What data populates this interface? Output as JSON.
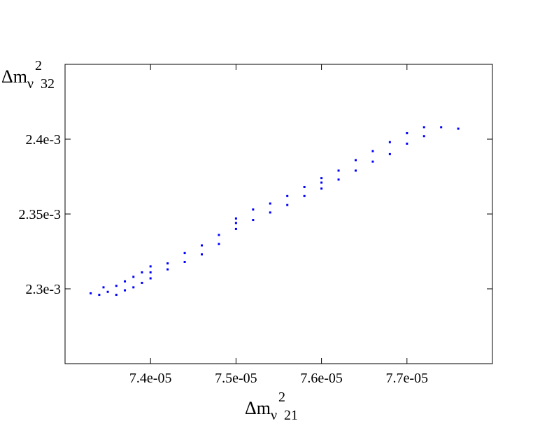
{
  "chart_data": {
    "type": "scatter",
    "xlabel": {
      "base": "Δm",
      "sub": "ν",
      "sup": "2",
      "index": "21"
    },
    "ylabel": {
      "base": "Δm",
      "sub": "ν",
      "sup": "2",
      "index": "32"
    },
    "xlim": [
      7.3e-05,
      7.8e-05
    ],
    "ylim": [
      0.00225,
      0.00245
    ],
    "xticks": [
      {
        "value": 7.4e-05,
        "label": "7.4e-05"
      },
      {
        "value": 7.5e-05,
        "label": "7.5e-05"
      },
      {
        "value": 7.6e-05,
        "label": "7.6e-05"
      },
      {
        "value": 7.7e-05,
        "label": "7.7e-05"
      }
    ],
    "yticks": [
      {
        "value": 0.0023,
        "label": "2.3e-3"
      },
      {
        "value": 0.00235,
        "label": "2.35e-3"
      },
      {
        "value": 0.0024,
        "label": "2.4e-3"
      }
    ],
    "series": [
      {
        "color": "#0000ff",
        "x": [
          7.33e-05,
          7.34e-05,
          7.345e-05,
          7.35e-05,
          7.36e-05,
          7.36e-05,
          7.37e-05,
          7.37e-05,
          7.38e-05,
          7.38e-05,
          7.39e-05,
          7.39e-05,
          7.4e-05,
          7.4e-05,
          7.4e-05,
          7.42e-05,
          7.42e-05,
          7.44e-05,
          7.44e-05,
          7.46e-05,
          7.46e-05,
          7.48e-05,
          7.48e-05,
          7.5e-05,
          7.5e-05,
          7.5e-05,
          7.52e-05,
          7.52e-05,
          7.54e-05,
          7.54e-05,
          7.56e-05,
          7.56e-05,
          7.58e-05,
          7.58e-05,
          7.6e-05,
          7.6e-05,
          7.6e-05,
          7.62e-05,
          7.62e-05,
          7.64e-05,
          7.64e-05,
          7.66e-05,
          7.66e-05,
          7.68e-05,
          7.68e-05,
          7.7e-05,
          7.7e-05,
          7.72e-05,
          7.72e-05,
          7.74e-05,
          7.76e-05
        ],
        "values": [
          0.002297,
          0.002296,
          0.002301,
          0.002298,
          0.002302,
          0.002296,
          0.002305,
          0.002299,
          0.002308,
          0.002301,
          0.002311,
          0.002304,
          0.002315,
          0.002307,
          0.002311,
          0.002317,
          0.002313,
          0.002324,
          0.002318,
          0.002329,
          0.002323,
          0.002336,
          0.00233,
          0.002347,
          0.00234,
          0.002344,
          0.002353,
          0.002346,
          0.002357,
          0.002351,
          0.002362,
          0.002356,
          0.002368,
          0.002362,
          0.002374,
          0.002367,
          0.002371,
          0.002379,
          0.002373,
          0.002386,
          0.002379,
          0.002392,
          0.002385,
          0.002398,
          0.00239,
          0.002404,
          0.002397,
          0.002408,
          0.002402,
          0.002408,
          0.002407
        ]
      }
    ]
  }
}
